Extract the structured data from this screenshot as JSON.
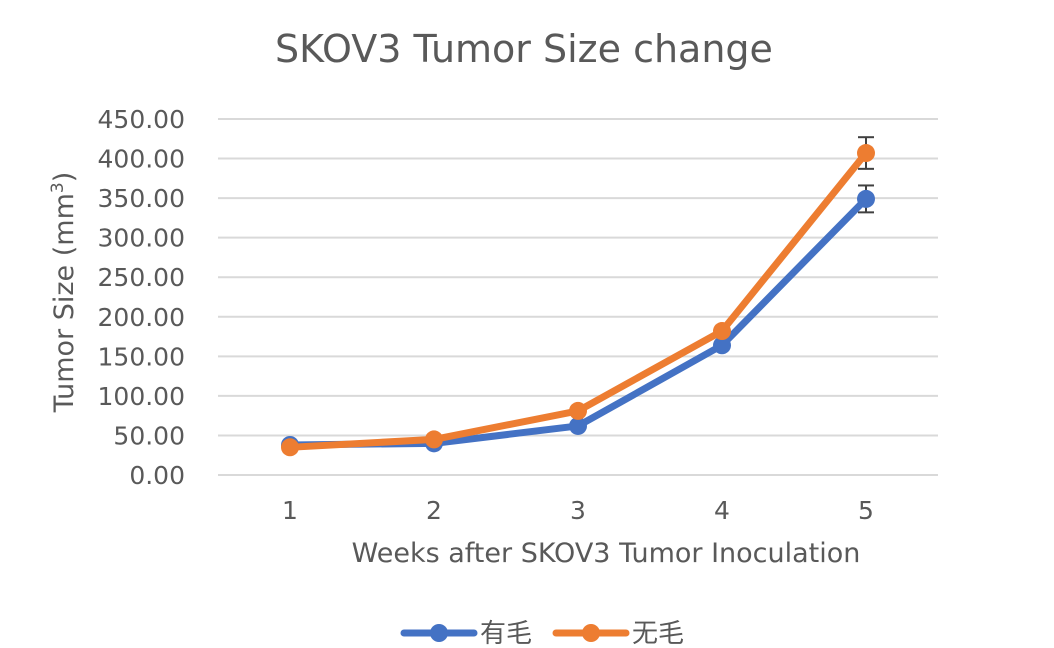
{
  "chart_data": {
    "type": "line",
    "title": "SKOV3 Tumor Size change",
    "xlabel": "Weeks after SKOV3 Tumor Inoculation",
    "ylabel_main": "Tumor Size (mm",
    "ylabel_sup": "3",
    "ylabel_close": ")",
    "categories": [
      "1",
      "2",
      "3",
      "4",
      "5"
    ],
    "ylim": [
      0,
      450
    ],
    "yticks": [
      "0.00",
      "50.00",
      "100.00",
      "150.00",
      "200.00",
      "250.00",
      "300.00",
      "350.00",
      "400.00",
      "450.00"
    ],
    "grid": true,
    "legend_position": "bottom",
    "series": [
      {
        "name": "有毛",
        "color": "#4472C4",
        "values": [
          38,
          40,
          62,
          164,
          349
        ],
        "error": [
          0,
          0,
          0,
          0,
          17
        ]
      },
      {
        "name": "无毛",
        "color": "#ED7D31",
        "values": [
          35,
          45,
          81,
          182,
          407
        ],
        "error": [
          0,
          0,
          0,
          0,
          20
        ]
      }
    ]
  }
}
